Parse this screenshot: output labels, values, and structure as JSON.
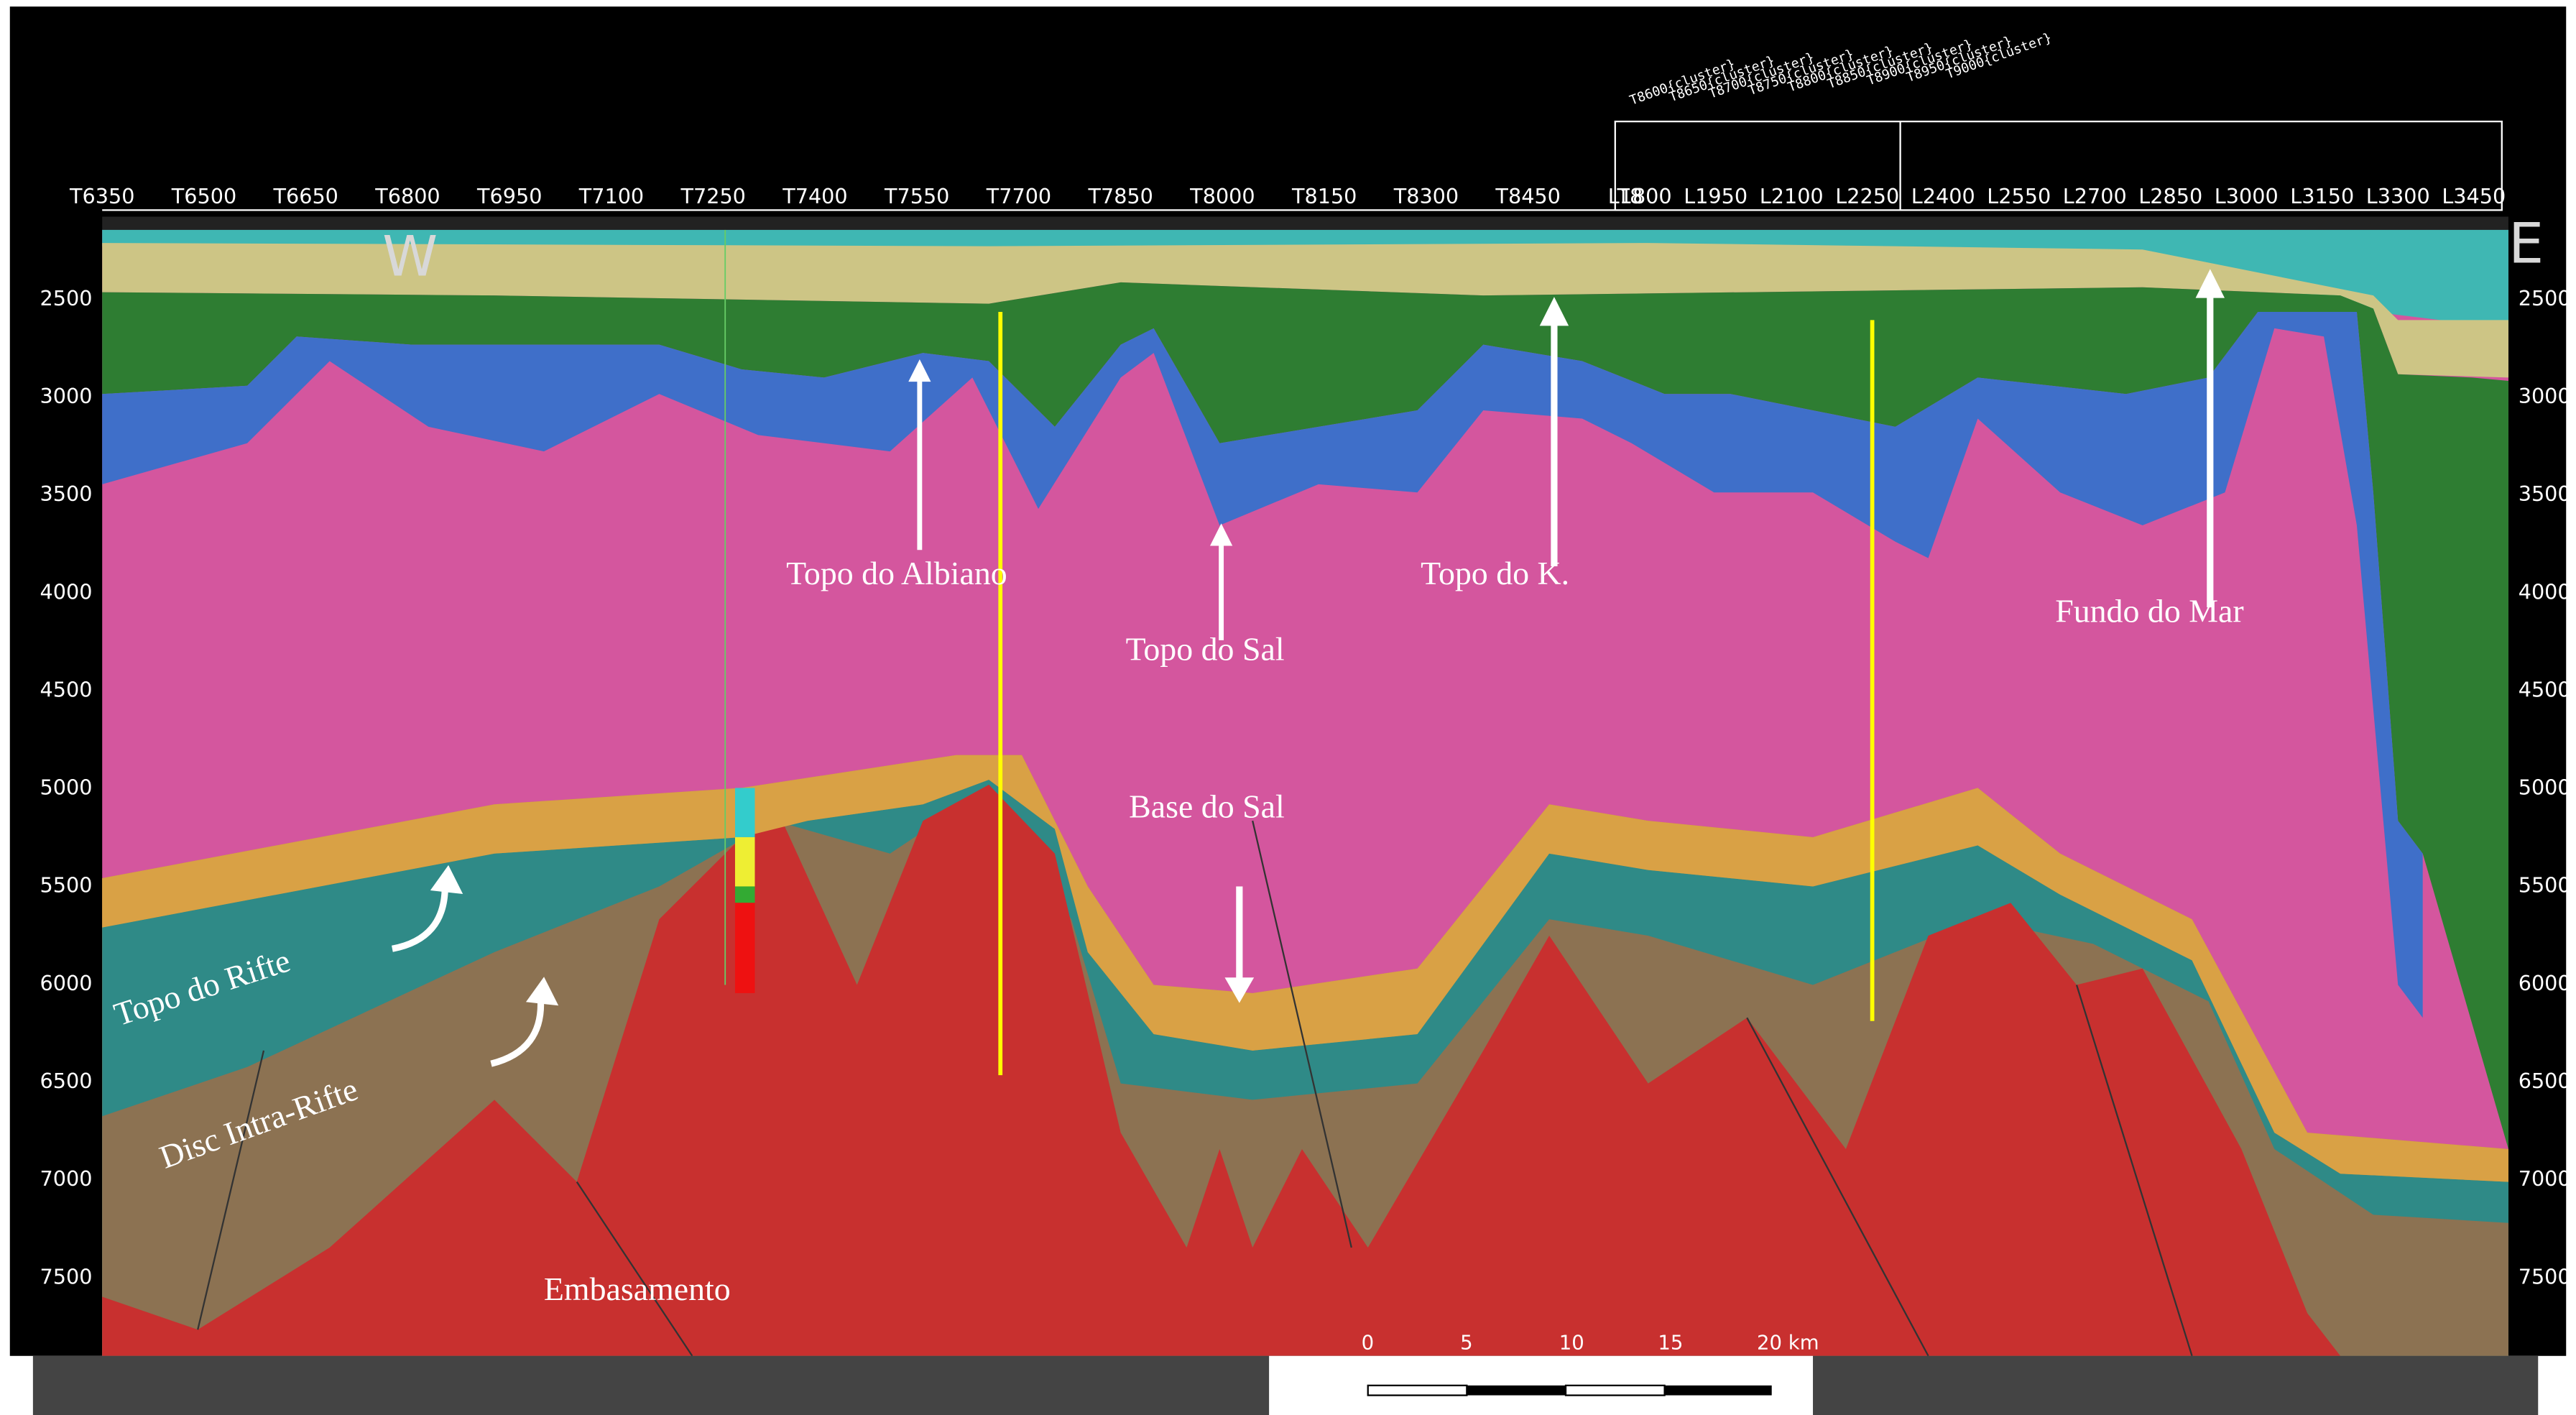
{
  "section": {
    "top_axis_t": [
      "T6350",
      "T6500",
      "T6650",
      "T6800",
      "T6950",
      "T7100",
      "T7250",
      "T7400",
      "T7550",
      "T7700",
      "T7850",
      "T8000",
      "T8150",
      "T8300",
      "T8450",
      "T8"
    ],
    "top_axis_l": [
      "L1800",
      "L1950",
      "L2100",
      "L2250",
      "L2400",
      "L2550",
      "L2700",
      "L2850",
      "L3000",
      "L3150",
      "L3300",
      "L3450"
    ],
    "cluster_labels": [
      "T8600{cluster}",
      "T8650{cluster}",
      "T8700{cluster}",
      "T8750{cluster}",
      "T8800{cluster}",
      "T8850{cluster}",
      "T8900{cluster}",
      "T8950{cluster}",
      "T9000{cluster}"
    ],
    "depth_axis": [
      "2500",
      "3000",
      "3500",
      "4000",
      "4500",
      "5000",
      "5500",
      "6000",
      "6500",
      "7000",
      "7500"
    ],
    "west": "W",
    "east": "E",
    "labels": {
      "topo_albiano": "Topo do Albiano",
      "topo_sal": "Topo do Sal",
      "topo_k": "Topo do K.",
      "fundo_mar": "Fundo do Mar",
      "base_sal": "Base do Sal",
      "topo_rifte": "Topo do Rifte",
      "disc_intra_rifte": "Disc Intra-Rifte",
      "embasamento": "Embasamento"
    },
    "scale_bar": [
      "0",
      "5",
      "10",
      "15",
      "20 km"
    ]
  }
}
